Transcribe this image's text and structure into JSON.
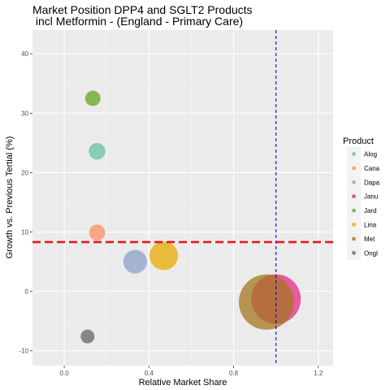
{
  "chart_data": {
    "type": "scatter",
    "title_lines": [
      "Market Position DPP4 and SGLT2 Products",
      " incl Metformin - (England - Primary Care)"
    ],
    "xlabel": "Relative Market Share",
    "ylabel": "Growth vs. Previous Tertial (%)",
    "xlim": [
      -0.15,
      1.27
    ],
    "ylim": [
      -12.5,
      44
    ],
    "xticks": [
      0.0,
      0.4,
      0.8,
      1.2
    ],
    "xtick_labels": [
      "0.0",
      "0.4",
      "0.8",
      "1.2"
    ],
    "yticks": [
      -10,
      0,
      10,
      20,
      30,
      40
    ],
    "ytick_labels": [
      "-10",
      "0",
      "10",
      "20",
      "30",
      "40"
    ],
    "grid": true,
    "legend_title": "Product",
    "legend_position": "right",
    "hline": {
      "y": 8.3,
      "color": "#e41a1c",
      "style": "dashed"
    },
    "vline": {
      "x": 1.0,
      "color": "#0000ff",
      "style": "dashed"
    },
    "points": [
      {
        "name": "Alog",
        "x": 0.155,
        "y": 23.6,
        "size": 0.04,
        "color": "#66c2a5"
      },
      {
        "name": "Cana",
        "x": 0.155,
        "y": 9.9,
        "size": 0.035,
        "color": "#fc8d62"
      },
      {
        "name": "Dapa",
        "x": 0.335,
        "y": 5.0,
        "size": 0.12,
        "color": "#8da0cb"
      },
      {
        "name": "Janu",
        "x": 1.0,
        "y": -1.3,
        "size": 0.78,
        "color": "#e7298a"
      },
      {
        "name": "Jard",
        "x": 0.135,
        "y": 32.5,
        "size": 0.03,
        "color": "#66a61e"
      },
      {
        "name": "Lina",
        "x": 0.47,
        "y": 6.0,
        "size": 0.2,
        "color": "#e6ab02"
      },
      {
        "name": "Met",
        "x": 0.955,
        "y": -1.8,
        "size": 1.0,
        "color": "#a6761d"
      },
      {
        "name": "Ongl",
        "x": 0.11,
        "y": -7.6,
        "size": 0.02,
        "color": "#666666"
      }
    ]
  }
}
